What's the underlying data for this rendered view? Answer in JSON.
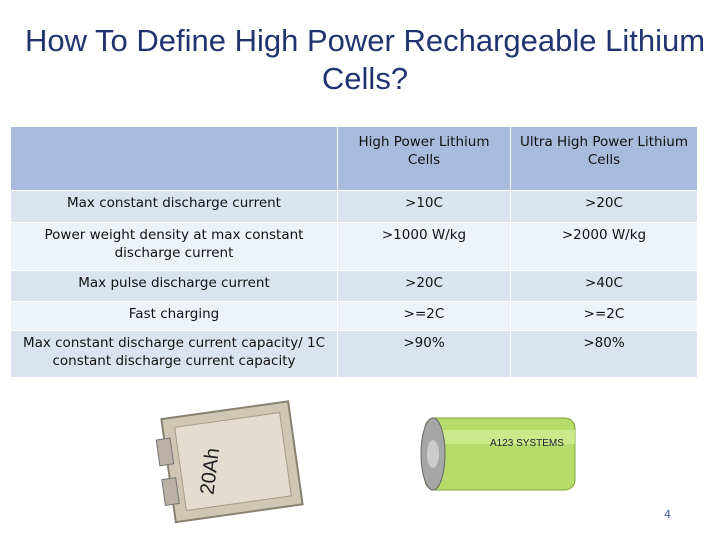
{
  "title": "How To Define High Power Rechargeable Lithium Cells?",
  "table": {
    "header": [
      "High Power Lithium Cells",
      "Ultra High Power Lithium Cells"
    ],
    "rows": [
      [
        "Max constant discharge current",
        ">10C",
        ">20C"
      ],
      [
        "Power weight density at max constant discharge current",
        ">1000 W/kg",
        ">2000 W/kg"
      ],
      [
        "Max pulse discharge current",
        ">20C",
        ">40C"
      ],
      [
        "Fast charging",
        ">=2C",
        ">=2C"
      ],
      [
        "Max constant discharge current capacity/ 1C constant discharge current capacity",
        ">90%",
        ">80%"
      ]
    ]
  },
  "images": {
    "pouch_label": "20Ah",
    "cylinder_label": "A123 SYSTEMS"
  },
  "page_number": "4"
}
